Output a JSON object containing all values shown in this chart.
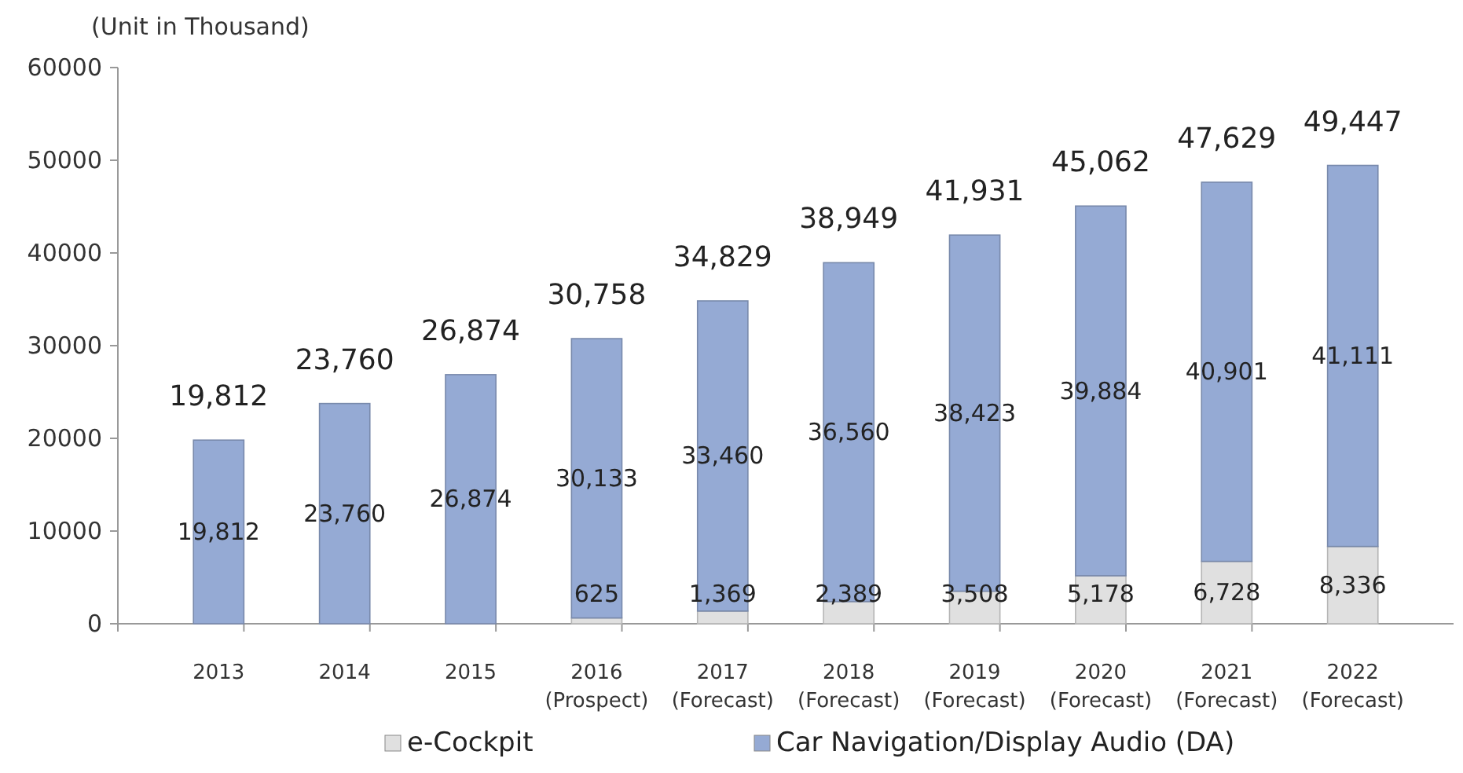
{
  "chart_data": {
    "type": "bar",
    "stacked": true,
    "ylabel": "(Unit in Thousand)",
    "categories": [
      "2013",
      "2014",
      "2015",
      "2016\n(Prospect)",
      "2017\n(Forecast)",
      "2018\n(Forecast)",
      "2019\n(Forecast)",
      "2020\n(Forecast)",
      "2021\n(Forecast)",
      "2022\n(Forecast)"
    ],
    "series": [
      {
        "name": "e-Cockpit",
        "color": "#e0e0e0",
        "values": [
          null,
          null,
          null,
          625,
          1369,
          2389,
          3508,
          5178,
          6728,
          8336
        ],
        "value_labels": [
          null,
          null,
          null,
          "625",
          "1,369",
          "2,389",
          "3,508",
          "5,178",
          "6,728",
          "8,336"
        ]
      },
      {
        "name": "Car Navigation/Display Audio (DA)",
        "color": "#95aad4",
        "values": [
          19812,
          23760,
          26874,
          30133,
          33460,
          36560,
          38423,
          39884,
          40901,
          41111
        ],
        "value_labels": [
          "19,812",
          "23,760",
          "26,874",
          "30,133",
          "33,460",
          "36,560",
          "38,423",
          "39,884",
          "40,901",
          "41,111"
        ]
      }
    ],
    "totals": [
      "19,812",
      "23,760",
      "26,874",
      "30,758",
      "34,829",
      "38,949",
      "41,931",
      "45,062",
      "47,629",
      "49,447"
    ],
    "ylim": [
      0,
      60000
    ],
    "yticks": [
      0,
      10000,
      20000,
      30000,
      40000,
      50000,
      60000
    ],
    "grid": false,
    "legend": "bottom"
  }
}
